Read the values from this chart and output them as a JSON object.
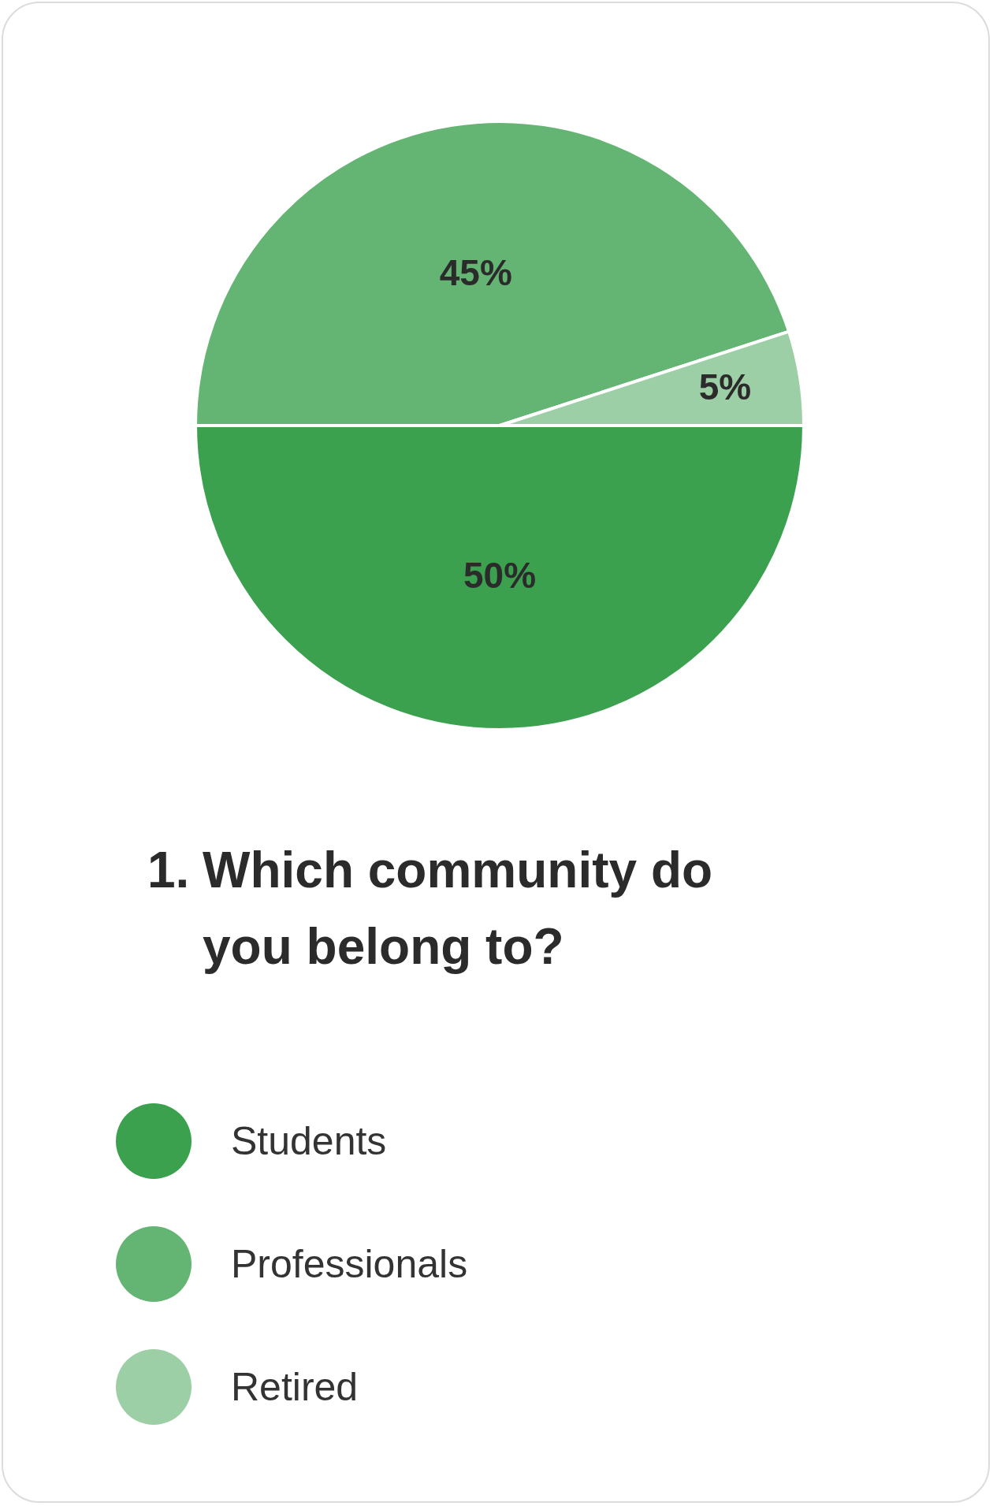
{
  "chart_data": {
    "type": "pie",
    "title": "1. Which community do you belong to?",
    "categories": [
      "Students",
      "Professionals",
      "Retired"
    ],
    "values": [
      50,
      45,
      5
    ],
    "colors": [
      "#3ba14f",
      "#64b473",
      "#9dcfa6"
    ],
    "value_labels": [
      "50%",
      "45%",
      "5%"
    ],
    "legend": "bottom"
  }
}
